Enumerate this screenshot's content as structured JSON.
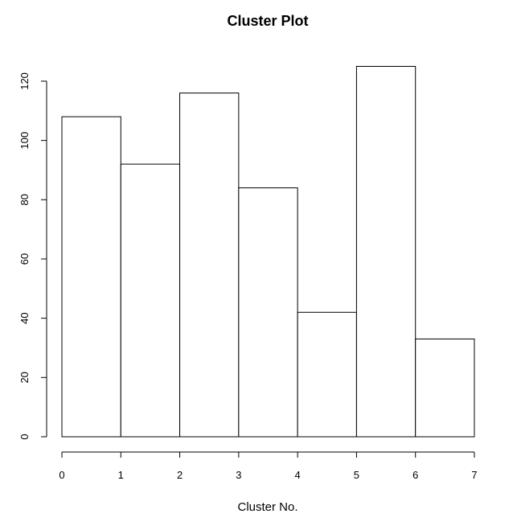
{
  "chart_data": {
    "type": "bar",
    "title": "Cluster Plot",
    "xlabel": "Cluster No.",
    "ylabel": "",
    "bins": [
      {
        "from": 0,
        "to": 1,
        "value": 108
      },
      {
        "from": 1,
        "to": 2,
        "value": 92
      },
      {
        "from": 2,
        "to": 3,
        "value": 116
      },
      {
        "from": 3,
        "to": 4,
        "value": 84
      },
      {
        "from": 4,
        "to": 5,
        "value": 42
      },
      {
        "from": 5,
        "to": 6,
        "value": 125
      },
      {
        "from": 6,
        "to": 7,
        "value": 33
      }
    ],
    "xlim": [
      0,
      7
    ],
    "ylim": [
      0,
      125
    ],
    "x_ticks": [
      0,
      1,
      2,
      3,
      4,
      5,
      6,
      7
    ],
    "y_ticks": [
      0,
      20,
      40,
      60,
      80,
      100,
      120
    ],
    "grid": false,
    "colors": {
      "bar_fill": "#ffffff",
      "bar_stroke": "#000000"
    }
  }
}
